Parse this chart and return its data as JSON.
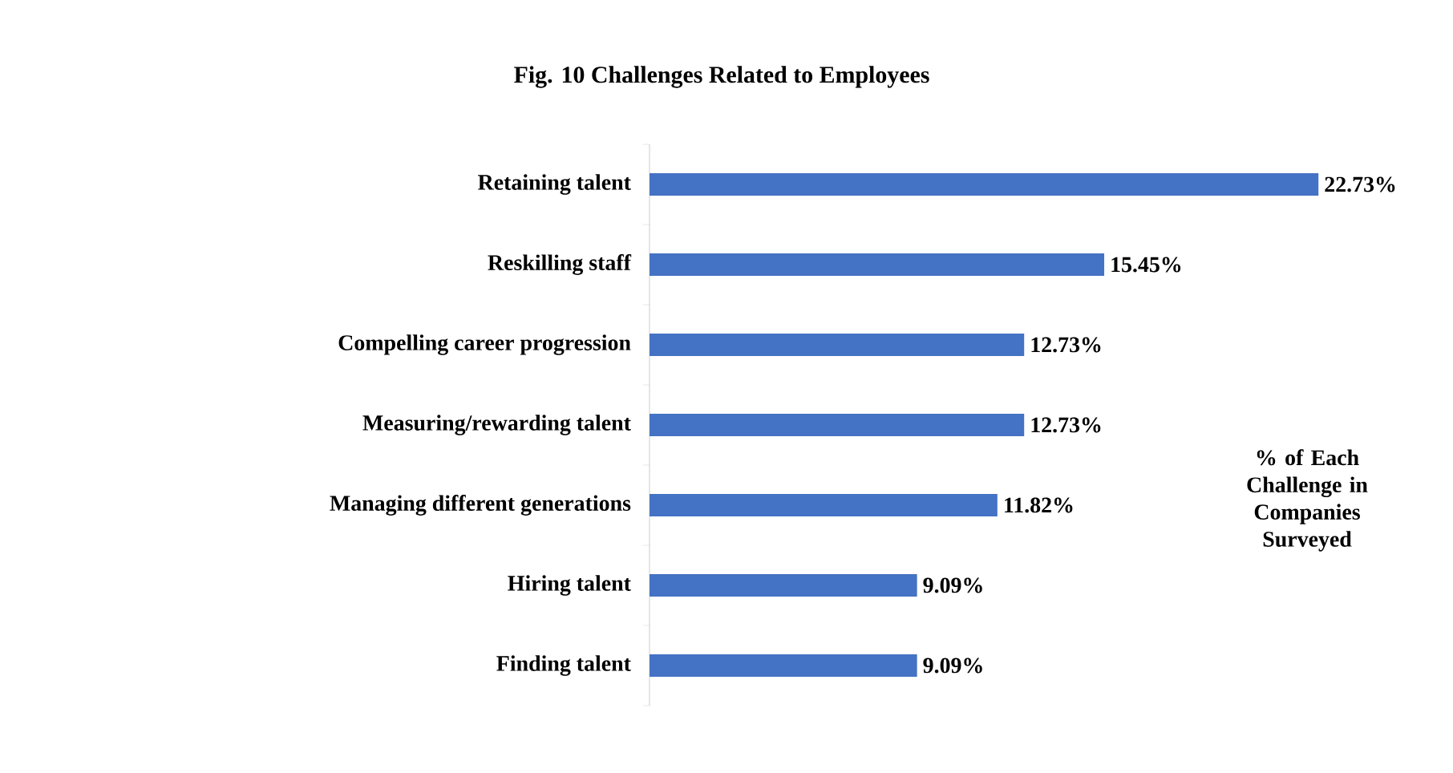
{
  "chart_data": {
    "type": "bar",
    "orientation": "horizontal",
    "title": "Fig. 10 Challenges Related to Employees",
    "categories": [
      "Retaining talent",
      "Reskilling staff",
      "Compelling career progression",
      "Measuring/rewarding talent",
      "Managing different generations",
      "Hiring talent",
      "Finding talent"
    ],
    "values": [
      22.73,
      15.45,
      12.73,
      12.73,
      11.82,
      9.09,
      9.09
    ],
    "value_labels": [
      "22.73%",
      "15.45%",
      "12.73%",
      "12.73%",
      "11.82%",
      "9.09%",
      "9.09%"
    ],
    "color": "#4472c4",
    "tick_labels": "y",
    "annotations": [
      "% of Each Challenge in Companies Surveyed"
    ]
  }
}
